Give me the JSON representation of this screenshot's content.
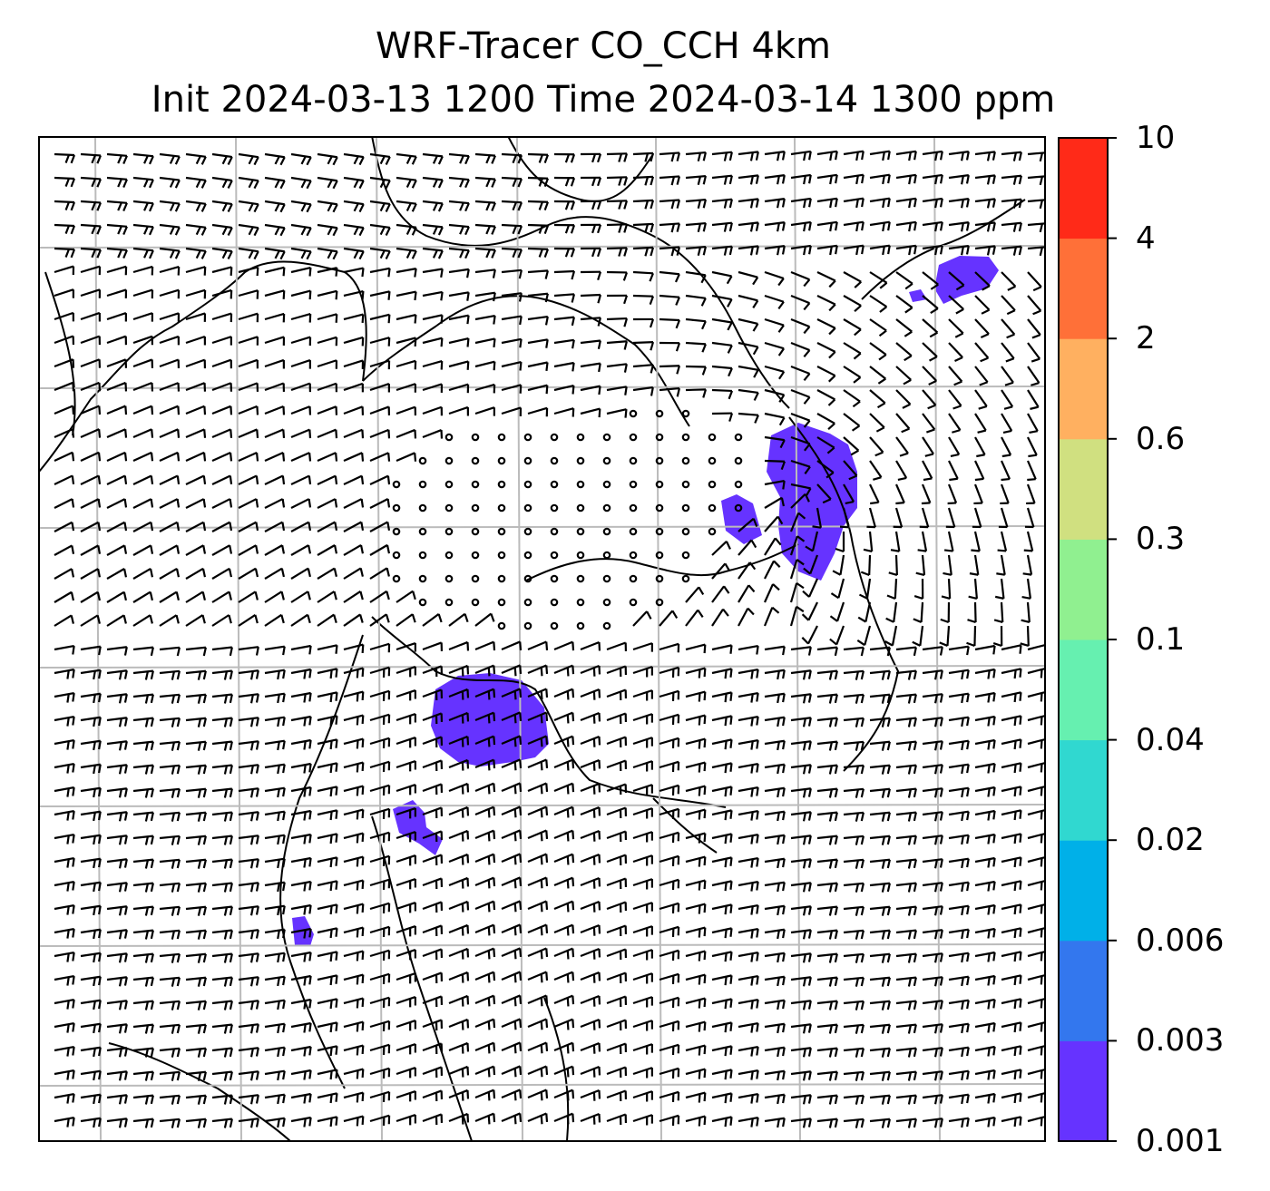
{
  "title": {
    "line1": "WRF-Tracer CO_CCH 4km",
    "line2": "Init 2024-03-13 1200 Time 2024-03-14 1300 ppm"
  },
  "colorbar": {
    "ticks": [
      "0.001",
      "0.003",
      "0.006",
      "0.02",
      "0.04",
      "0.1",
      "0.3",
      "0.6",
      "2",
      "4",
      "10"
    ],
    "colors": [
      "#6633ff",
      "#3377ee",
      "#00b0e8",
      "#30d8d0",
      "#66f0b0",
      "#90f090",
      "#d0e080",
      "#ffb060",
      "#ff7038",
      "#ff2a18"
    ]
  },
  "map": {
    "gridlines": "on",
    "tracer_color": "#6633ff",
    "barb_color": "#000000",
    "gridline_color": "#bbbbbb"
  }
}
